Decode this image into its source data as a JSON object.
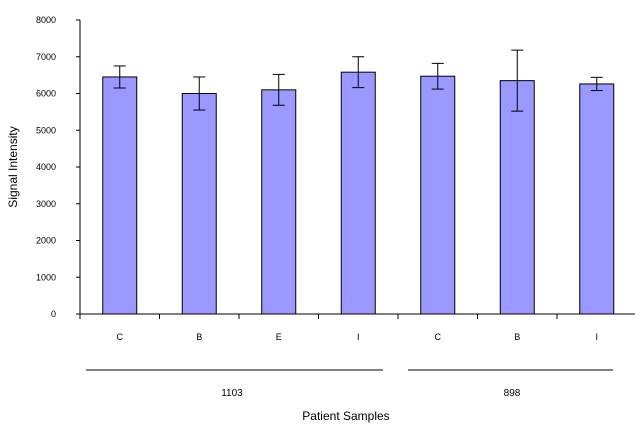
{
  "chart_data": {
    "type": "bar",
    "title": "",
    "xlabel": "Patient Samples",
    "ylabel": "Signal Intensity",
    "ylim": [
      0,
      8000
    ],
    "yticks": [
      0,
      1000,
      2000,
      3000,
      4000,
      5000,
      6000,
      7000,
      8000
    ],
    "categories": [
      "C",
      "B",
      "E",
      "I",
      "C",
      "B",
      "I"
    ],
    "values": [
      6450,
      6000,
      6100,
      6580,
      6470,
      6350,
      6260
    ],
    "errors": [
      300,
      450,
      420,
      420,
      350,
      830,
      180
    ],
    "groups": [
      {
        "label": "1103",
        "count": 4
      },
      {
        "label": "898",
        "count": 3
      }
    ],
    "bar_color": "#9999ff",
    "grid": false,
    "legend": "none"
  }
}
